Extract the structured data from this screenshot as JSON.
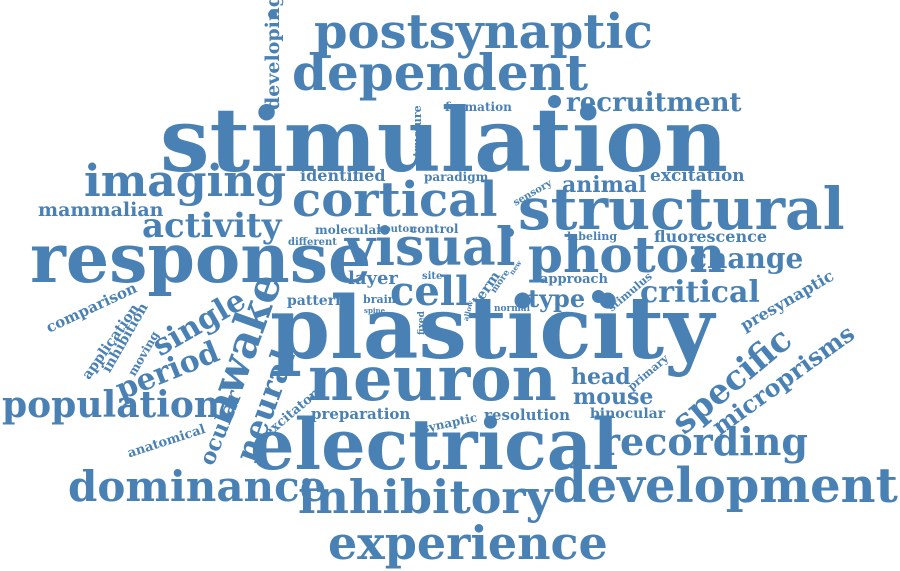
{
  "word_color": "#4a81b5",
  "words": {
    "postsynaptic": "postsynaptic",
    "dependent": "dependent",
    "developing": "developing",
    "recruitment": "recruitment",
    "formation": "formation",
    "structure": "structure",
    "stimulation": "stimulation",
    "imaging": "imaging",
    "identified": "identified",
    "paradigm": "paradigm",
    "animal": "animal",
    "excitation": "excitation",
    "cortical": "cortical",
    "structural": "structural",
    "mammalian": "mammalian",
    "sensory": "sensory",
    "activity": "activity",
    "molecular": "molecular",
    "bouton": "bouton",
    "control": "control",
    "visual": "visual",
    "labeling": "labeling",
    "fluorescence": "fluorescence",
    "different": "different",
    "response": "response",
    "photon": "photon",
    "change": "change",
    "layer": "layer",
    "site": "site",
    "term": "term",
    "more": "more",
    "new": "new",
    "approach": "approach",
    "cell": "cell",
    "type": "type",
    "critical": "critical",
    "comparison": "comparison",
    "single": "single",
    "awake": "awake",
    "pattern": "pattern",
    "brain": "brain",
    "spine": "spine",
    "fixed": "fixed",
    "allow": "allow",
    "normal": "normal",
    "stimulus": "stimulus",
    "presynaptic": "presynaptic",
    "plasticity": "plasticity",
    "specific": "specific",
    "application": "application",
    "inhibition": "inhibition",
    "moving": "moving",
    "period": "period",
    "microprisms": "microprisms",
    "neural": "neural",
    "neuron": "neuron",
    "head": "head",
    "primary": "primary",
    "mouse": "mouse",
    "population": "population",
    "ocular": "ocular",
    "excitatory": "excitatory",
    "preparation": "preparation",
    "binocular": "binocular",
    "anatomical": "anatomical",
    "synaptic": "synaptic",
    "resolution": "resolution",
    "electrical": "electrical",
    "recording": "recording",
    "dominance": "dominance",
    "inhibitory": "inhibitory",
    "development": "development",
    "experience": "experience"
  }
}
